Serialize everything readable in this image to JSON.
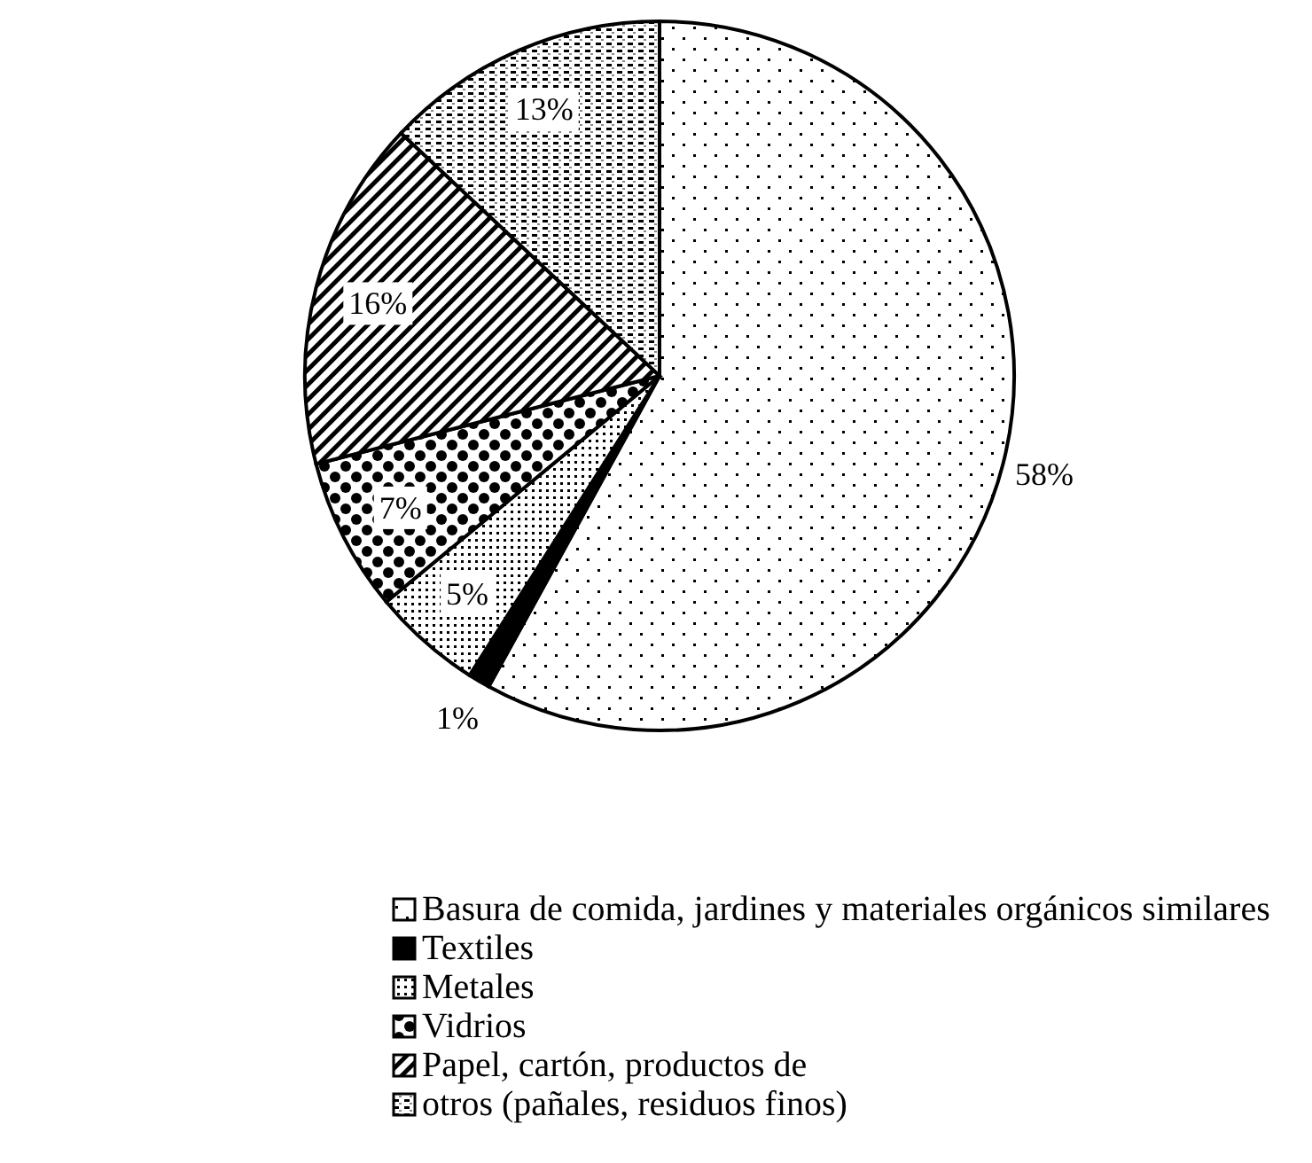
{
  "chart_data": {
    "type": "pie",
    "categories": [
      "Basura de comida, jardines y materiales orgánicos similares",
      "Textiles",
      "Metales",
      "Vidrios",
      "Papel, cartón, productos de",
      "otros (pañales, residuos finos)"
    ],
    "values": [
      58,
      1,
      5,
      7,
      16,
      13
    ],
    "colors": [
      "#000000",
      "#000000",
      "#000000",
      "#000000",
      "#000000",
      "#000000"
    ],
    "value_labels": [
      "58%",
      "1%",
      "5%",
      "7%",
      "16%",
      "13%"
    ],
    "legend": "bottom"
  }
}
